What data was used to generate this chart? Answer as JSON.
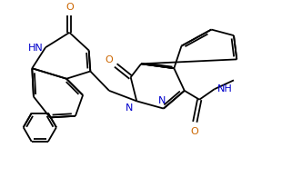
{
  "bg_color": "#ffffff",
  "line_color": "#000000",
  "n_color": "#0000cc",
  "o_color": "#cc6600",
  "lw": 1.3,
  "figsize": [
    3.32,
    2.07
  ],
  "dpi": 100,
  "xlim": [
    0.0,
    8.3
  ],
  "ylim": [
    0.0,
    5.175
  ]
}
